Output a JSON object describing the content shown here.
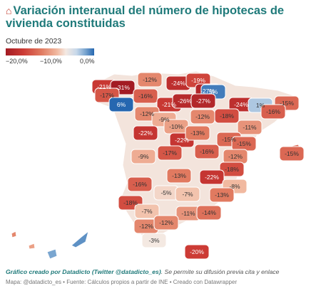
{
  "header": {
    "icon": "house-icon",
    "title": "Variación interanual del número de hipotecas de vivienda constituidas",
    "subtitle": "Octubre de 2023"
  },
  "legend": {
    "ticks": [
      "−20,0%",
      "−10,0%",
      "0,0%"
    ],
    "scale_colors": [
      "#a31b23",
      "#f4e9e2",
      "#2667b0"
    ]
  },
  "regions": [
    {
      "name": "A Coruña",
      "value": "-21%",
      "num": -21
    },
    {
      "name": "Lugo",
      "value": "-31%",
      "num": -31
    },
    {
      "name": "Asturias",
      "value": "-12%",
      "num": -12
    },
    {
      "name": "Cantabria",
      "value": "-24%",
      "num": -24
    },
    {
      "name": "Bizkaia",
      "value": "-19%",
      "num": -19
    },
    {
      "name": "Gipuzkoa",
      "value": "-27%",
      "num": -27
    },
    {
      "name": "Pontevedra",
      "value": "-17%",
      "num": -17
    },
    {
      "name": "Ourense",
      "value": "6%",
      "num": 6
    },
    {
      "name": "León",
      "value": "-16%",
      "num": -16
    },
    {
      "name": "Burgos",
      "value": "-21%",
      "num": -21
    },
    {
      "name": "Álava",
      "value": "-26%",
      "num": -26
    },
    {
      "name": "Navarra",
      "value": "5%",
      "num": 5
    },
    {
      "name": "La Rioja",
      "value": "-27%",
      "num": -27
    },
    {
      "name": "Huesca",
      "value": "-24%",
      "num": -24
    },
    {
      "name": "Lleida",
      "value": "1%",
      "num": 1
    },
    {
      "name": "Girona",
      "value": "-15%",
      "num": -15
    },
    {
      "name": "Barcelona",
      "value": "-16%",
      "num": -16
    },
    {
      "name": "Zamora",
      "value": "-12%",
      "num": -12
    },
    {
      "name": "Palencia",
      "value": "-9%",
      "num": -9
    },
    {
      "name": "Valladolid",
      "value": "-10%",
      "num": -10
    },
    {
      "name": "Soria",
      "value": "-12%",
      "num": -12
    },
    {
      "name": "Zaragoza",
      "value": "-18%",
      "num": -18
    },
    {
      "name": "Tarragona",
      "value": "-11%",
      "num": -11
    },
    {
      "name": "Salamanca",
      "value": "-22%",
      "num": -22
    },
    {
      "name": "Segovia",
      "value": "-22%",
      "num": -22
    },
    {
      "name": "Guadalajara",
      "value": "-13%",
      "num": -13
    },
    {
      "name": "Teruel",
      "value": "-15%",
      "num": -15
    },
    {
      "name": "Castellón",
      "value": "-15%",
      "num": -15
    },
    {
      "name": "Ávila",
      "value": "-17%",
      "num": -17
    },
    {
      "name": "Madrid",
      "value": "-16%",
      "num": -16
    },
    {
      "name": "Cáceres",
      "value": "-9%",
      "num": -9
    },
    {
      "name": "Cuenca",
      "value": "-12%",
      "num": -12
    },
    {
      "name": "Valencia",
      "value": "-18%",
      "num": -18
    },
    {
      "name": "Toledo",
      "value": "-13%",
      "num": -13
    },
    {
      "name": "Albacete",
      "value": "-22%",
      "num": -22
    },
    {
      "name": "Badajoz",
      "value": "-16%",
      "num": -16
    },
    {
      "name": "Alicante",
      "value": "-8%",
      "num": -8
    },
    {
      "name": "Ciudad Real",
      "value": "-5%",
      "num": -5
    },
    {
      "name": "Jaén",
      "value": "-7%",
      "num": -7
    },
    {
      "name": "Murcia",
      "value": "-13%",
      "num": -13
    },
    {
      "name": "Huelva",
      "value": "-18%",
      "num": -18
    },
    {
      "name": "Córdoba",
      "value": "-7%",
      "num": -7
    },
    {
      "name": "Granada",
      "value": "-11%",
      "num": -11
    },
    {
      "name": "Almería",
      "value": "-14%",
      "num": -14
    },
    {
      "name": "Sevilla",
      "value": "-12%",
      "num": -12
    },
    {
      "name": "Málaga",
      "value": "-12%",
      "num": -12
    },
    {
      "name": "Cádiz",
      "value": "-3%",
      "num": -3
    },
    {
      "name": "Islas Baleares",
      "value": "-15%",
      "num": -15
    },
    {
      "name": "Melilla",
      "value": "-20%",
      "num": -20
    }
  ],
  "footer": {
    "credit_prefix": "Gráfico creado por ",
    "credit_author": "Datadicto (Twitter @datadicto_es)",
    "credit_suffix": ". Se permite su difusión previa cita y enlace",
    "source": "Mapa: @datadicto_es • Fuente: Cálculos propios a partir de INE • Creado con Datawrapper"
  }
}
